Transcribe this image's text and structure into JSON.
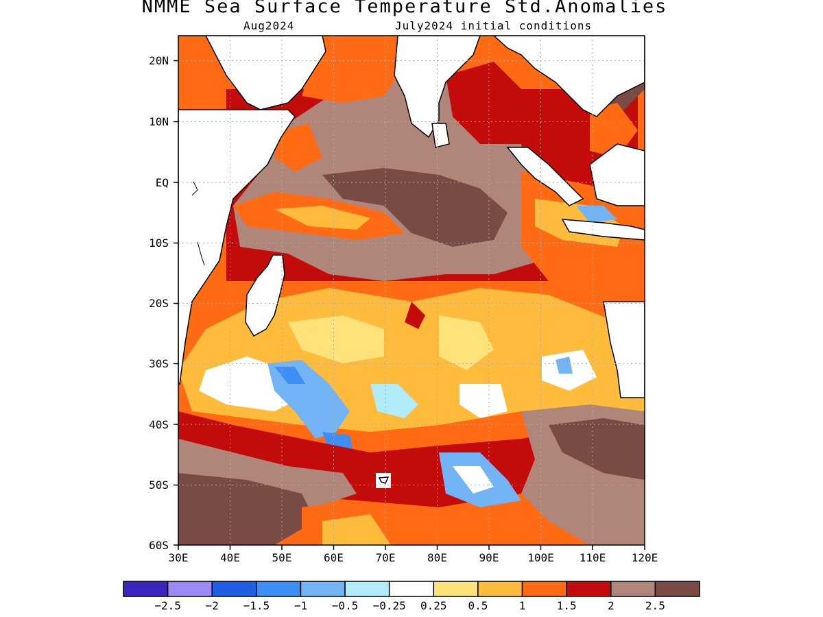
{
  "title": "NMME Sea Surface Temperature Std.Anomalies",
  "subtitle_left": "Aug2024",
  "subtitle_right": "July2024 initial conditions",
  "lat_labels": [
    "20N",
    "10N",
    "EQ",
    "10S",
    "20S",
    "30S",
    "40S",
    "50S",
    "60S"
  ],
  "lon_labels": [
    "30E",
    "40E",
    "50E",
    "60E",
    "70E",
    "80E",
    "90E",
    "100E",
    "110E",
    "120E"
  ],
  "colorbar": {
    "colors": [
      "#3b26bf",
      "#9b8af5",
      "#1f5fe6",
      "#3d8ff5",
      "#73b4f7",
      "#b2ecf8",
      "#ffffff",
      "#ffe27a",
      "#ffbc3c",
      "#ff6a12",
      "#c40b0b",
      "#b0857a",
      "#7a4b44"
    ],
    "labels": [
      "−2.5",
      "−2",
      "−1.5",
      "−1",
      "−0.5",
      "−0.25",
      "0.25",
      "0.5",
      "1",
      "1.5",
      "2",
      "2.5"
    ]
  }
}
